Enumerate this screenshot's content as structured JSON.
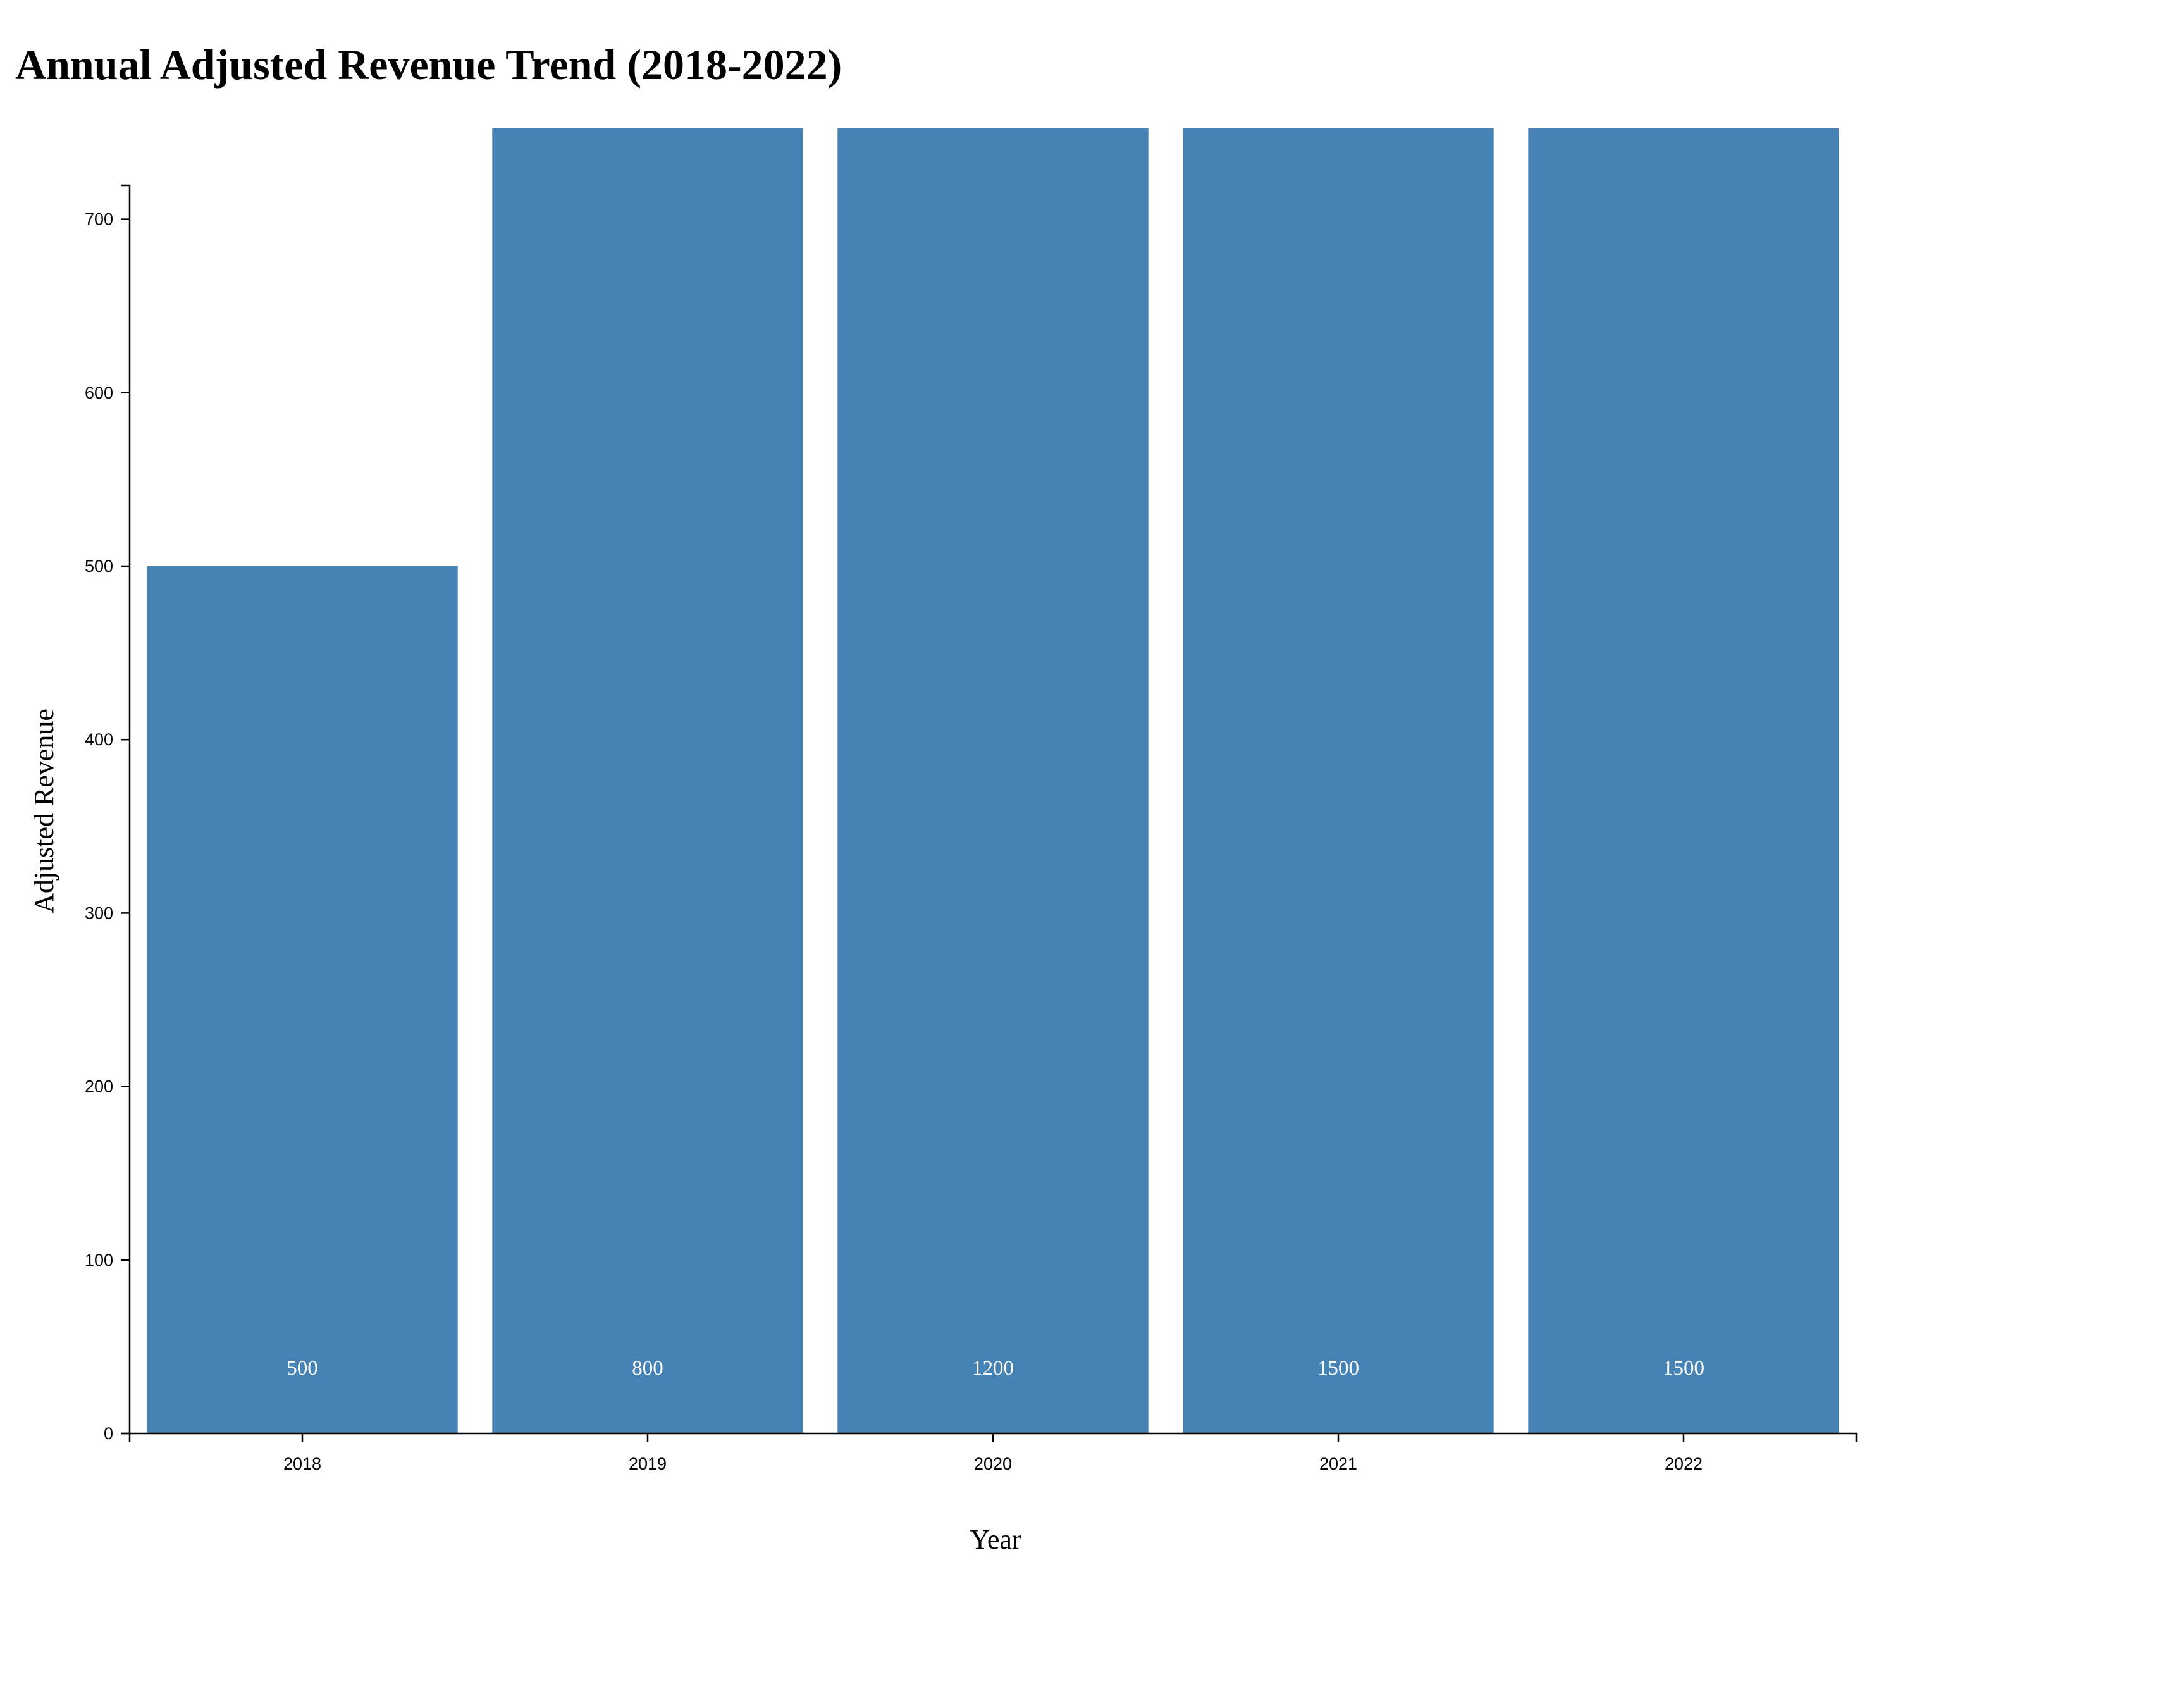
{
  "chart_data": {
    "type": "bar",
    "title": "Annual Adjusted Revenue Trend (2018-2022)",
    "xlabel": "Year",
    "ylabel": "Adjusted Revenue",
    "categories": [
      "2018",
      "2019",
      "2020",
      "2021",
      "2022"
    ],
    "values": [
      500,
      800,
      1200,
      1500,
      1500
    ],
    "data_labels": [
      "500",
      "800",
      "1200",
      "1500",
      "1500"
    ],
    "ylim": [
      0,
      720
    ],
    "yticks": [
      0,
      100,
      200,
      300,
      400,
      500,
      600,
      700
    ],
    "ytick_labels": [
      "0",
      "100",
      "200",
      "300",
      "400",
      "500",
      "600",
      "700"
    ],
    "grid": false,
    "legend": "none",
    "bar_color": "#4682b4"
  }
}
